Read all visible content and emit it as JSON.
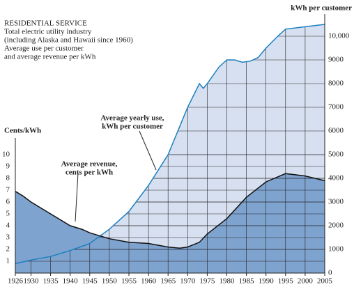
{
  "chart_data": {
    "type": "area",
    "title_lines": [
      "RESIDENTIAL SERVICE",
      "Total electric utility industry",
      "(including Alaska and Hawaii since 1960)",
      "Average use per customer",
      "and average revenue per kWh"
    ],
    "y_label": "Cents/kWh",
    "y2_label": "kWh per customer",
    "annotations": [
      {
        "text": [
          "Average yearly use,",
          "kWh per customer"
        ]
      },
      {
        "text": [
          "Average revenue,",
          "cents per kWh"
        ]
      }
    ],
    "xlim": [
      1926,
      2005
    ],
    "xticks": [
      1926,
      1930,
      1935,
      1940,
      1945,
      1950,
      1955,
      1960,
      1965,
      1970,
      1975,
      1980,
      1985,
      1990,
      1995,
      2000,
      2005
    ],
    "ylim": [
      0,
      21
    ],
    "yticks": [
      1,
      2,
      3,
      4,
      5,
      6,
      7,
      8,
      9,
      10
    ],
    "y2lim": [
      0,
      10500
    ],
    "y2ticks": [
      0,
      1000,
      2000,
      3000,
      4000,
      5000,
      6000,
      7000,
      8000,
      9000,
      {
        "value": 10000,
        "label": "10,000"
      }
    ],
    "grid": true,
    "series": [
      {
        "name": "Average yearly use",
        "axis": "y2",
        "color": "#1a7fc0",
        "fill": "#d7e0f0",
        "x": [
          1926,
          1930,
          1935,
          1940,
          1945,
          1950,
          1955,
          1960,
          1965,
          1970,
          1973,
          1974,
          1975,
          1978,
          1980,
          1982,
          1984,
          1986,
          1988,
          1990,
          1993,
          1995,
          2000,
          2005
        ],
        "values": [
          400,
          550,
          700,
          950,
          1250,
          1850,
          2600,
          3700,
          5000,
          7000,
          8000,
          7800,
          8000,
          8700,
          9000,
          9000,
          8900,
          8950,
          9100,
          9500,
          10000,
          10300,
          10400,
          10500
        ]
      },
      {
        "name": "Average revenue",
        "axis": "y",
        "color": "#111111",
        "fill": "#7fa3cf",
        "x": [
          1926,
          1928,
          1930,
          1935,
          1940,
          1943,
          1945,
          1950,
          1955,
          1960,
          1965,
          1968,
          1970,
          1973,
          1975,
          1980,
          1985,
          1990,
          1995,
          2000,
          2005
        ],
        "values": [
          6.9,
          6.5,
          6.0,
          5.0,
          4.0,
          3.7,
          3.4,
          2.9,
          2.6,
          2.5,
          2.2,
          2.1,
          2.2,
          2.6,
          3.3,
          4.6,
          6.4,
          7.7,
          8.4,
          8.2,
          7.8
        ]
      }
    ]
  }
}
